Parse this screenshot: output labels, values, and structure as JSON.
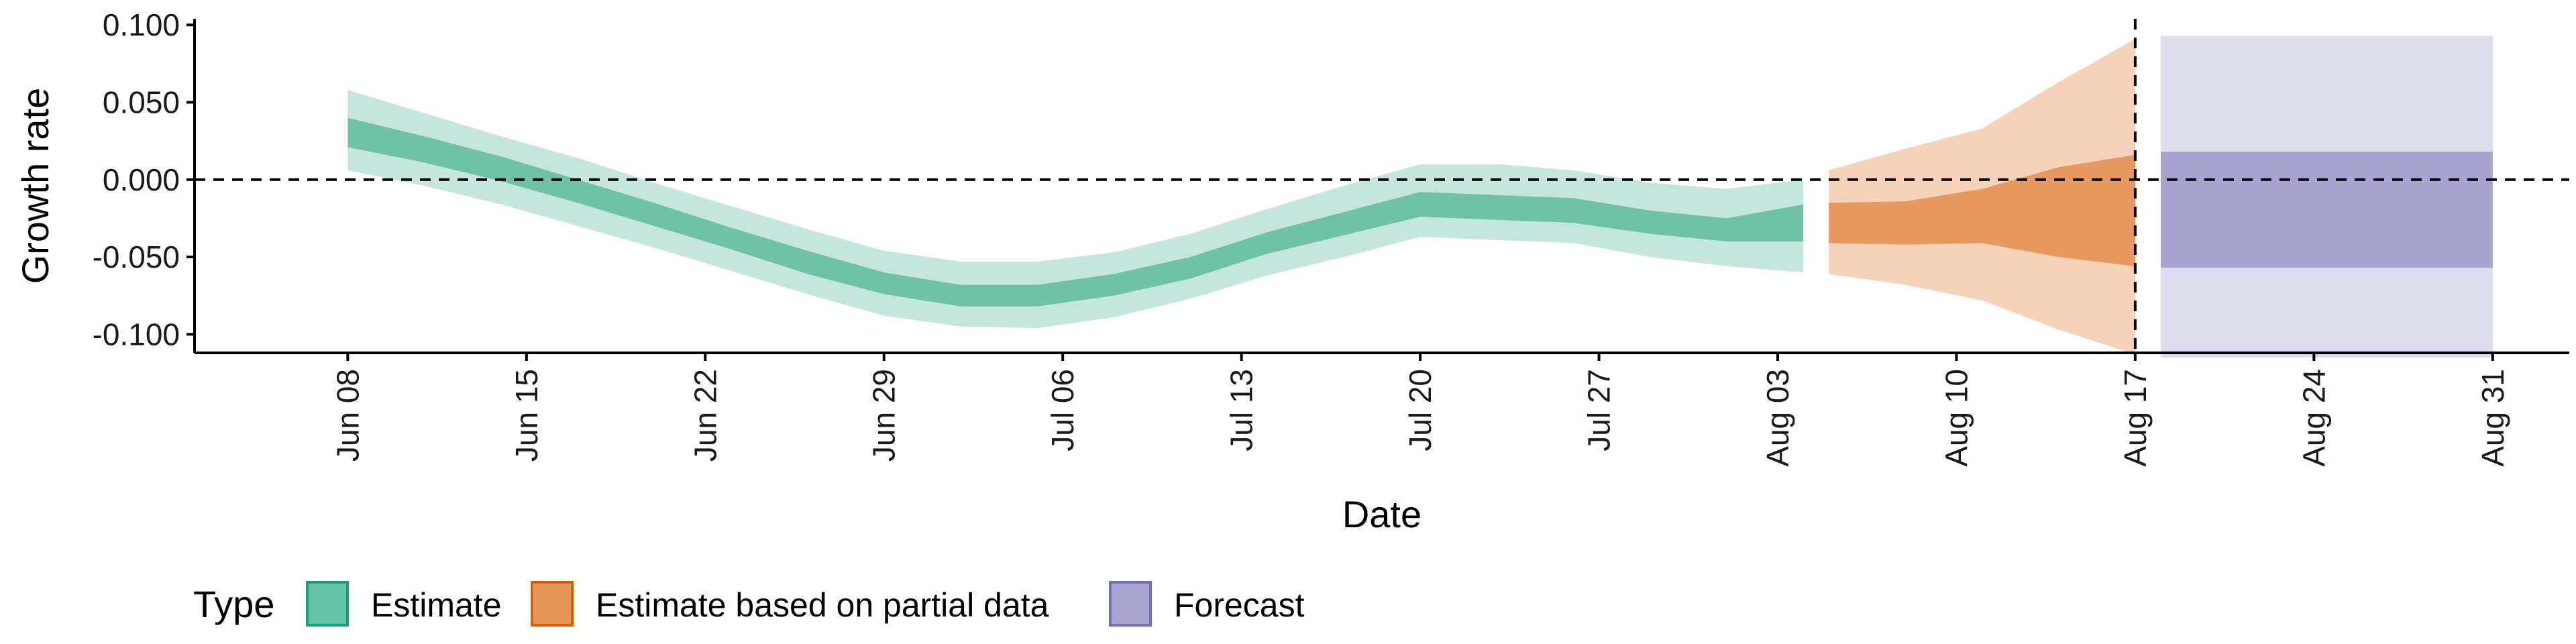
{
  "chart_data": {
    "type": "area",
    "title": "",
    "xlabel": "Date",
    "ylabel": "Growth rate",
    "ylim": [
      -0.112,
      0.104
    ],
    "xlim": [
      "2020-06-02",
      "2020-09-03"
    ],
    "x_ticks": [
      {
        "date": "2020-06-08",
        "label": "Jun 08"
      },
      {
        "date": "2020-06-15",
        "label": "Jun 15"
      },
      {
        "date": "2020-06-22",
        "label": "Jun 22"
      },
      {
        "date": "2020-06-29",
        "label": "Jun 29"
      },
      {
        "date": "2020-07-06",
        "label": "Jul 06"
      },
      {
        "date": "2020-07-13",
        "label": "Jul 13"
      },
      {
        "date": "2020-07-20",
        "label": "Jul 20"
      },
      {
        "date": "2020-07-27",
        "label": "Jul 27"
      },
      {
        "date": "2020-08-03",
        "label": "Aug 03"
      },
      {
        "date": "2020-08-10",
        "label": "Aug 10"
      },
      {
        "date": "2020-08-17",
        "label": "Aug 17"
      },
      {
        "date": "2020-08-24",
        "label": "Aug 24"
      },
      {
        "date": "2020-08-31",
        "label": "Aug 31"
      }
    ],
    "y_ticks": [
      {
        "value": 0.1,
        "label": "0.100"
      },
      {
        "value": 0.05,
        "label": "0.050"
      },
      {
        "value": 0.0,
        "label": "0.000"
      },
      {
        "value": -0.05,
        "label": "-0.050"
      },
      {
        "value": -0.1,
        "label": "-0.100"
      }
    ],
    "reference_lines": {
      "horizontal_y": 0.0,
      "vertical_x": "2020-08-17",
      "style": "dashed"
    },
    "grid": false,
    "legend": {
      "title": "Type",
      "position": "bottom-left",
      "items": [
        {
          "label": "Estimate",
          "fill": "#66c2a5",
          "border": "#1b9e77"
        },
        {
          "label": "Estimate based on partial data",
          "fill": "#e8955a",
          "border": "#d95f02"
        },
        {
          "label": "Forecast",
          "fill": "#a9a4d1",
          "border": "#7570b3"
        }
      ]
    },
    "series": [
      {
        "name": "Estimate",
        "outer_color": "#c6e6dd",
        "inner_color": "#70c2a6",
        "points": [
          {
            "date": "2020-06-08",
            "lo90": 0.006,
            "lo50": 0.021,
            "hi50": 0.04,
            "hi90": 0.058
          },
          {
            "date": "2020-06-11",
            "lo90": -0.004,
            "lo50": 0.011,
            "hi50": 0.028,
            "hi90": 0.043
          },
          {
            "date": "2020-06-14",
            "lo90": -0.016,
            "lo50": -0.001,
            "hi50": 0.015,
            "hi90": 0.028
          },
          {
            "date": "2020-06-17",
            "lo90": -0.03,
            "lo50": -0.015,
            "hi50": 0.0,
            "hi90": 0.014
          },
          {
            "date": "2020-06-20",
            "lo90": -0.044,
            "lo50": -0.03,
            "hi50": -0.015,
            "hi90": -0.002
          },
          {
            "date": "2020-06-23",
            "lo90": -0.059,
            "lo50": -0.045,
            "hi50": -0.031,
            "hi90": -0.017
          },
          {
            "date": "2020-06-26",
            "lo90": -0.074,
            "lo50": -0.061,
            "hi50": -0.046,
            "hi90": -0.032
          },
          {
            "date": "2020-06-29",
            "lo90": -0.088,
            "lo50": -0.074,
            "hi50": -0.06,
            "hi90": -0.046
          },
          {
            "date": "2020-07-02",
            "lo90": -0.095,
            "lo50": -0.082,
            "hi50": -0.068,
            "hi90": -0.053
          },
          {
            "date": "2020-07-05",
            "lo90": -0.096,
            "lo50": -0.082,
            "hi50": -0.068,
            "hi90": -0.053
          },
          {
            "date": "2020-07-08",
            "lo90": -0.089,
            "lo50": -0.075,
            "hi50": -0.061,
            "hi90": -0.047
          },
          {
            "date": "2020-07-11",
            "lo90": -0.077,
            "lo50": -0.064,
            "hi50": -0.05,
            "hi90": -0.035
          },
          {
            "date": "2020-07-14",
            "lo90": -0.062,
            "lo50": -0.048,
            "hi50": -0.034,
            "hi90": -0.019
          },
          {
            "date": "2020-07-17",
            "lo90": -0.05,
            "lo50": -0.036,
            "hi50": -0.021,
            "hi90": -0.004
          },
          {
            "date": "2020-07-20",
            "lo90": -0.037,
            "lo50": -0.024,
            "hi50": -0.008,
            "hi90": 0.01
          },
          {
            "date": "2020-07-23",
            "lo90": -0.039,
            "lo50": -0.026,
            "hi50": -0.01,
            "hi90": 0.01
          },
          {
            "date": "2020-07-26",
            "lo90": -0.041,
            "lo50": -0.028,
            "hi50": -0.012,
            "hi90": 0.006
          },
          {
            "date": "2020-07-29",
            "lo90": -0.05,
            "lo50": -0.035,
            "hi50": -0.02,
            "hi90": -0.002
          },
          {
            "date": "2020-08-01",
            "lo90": -0.056,
            "lo50": -0.04,
            "hi50": -0.025,
            "hi90": -0.006
          },
          {
            "date": "2020-08-04",
            "lo90": -0.06,
            "lo50": -0.04,
            "hi50": -0.016,
            "hi90": 0.0
          }
        ]
      },
      {
        "name": "Estimate based on partial data",
        "outer_color": "#f5d2b9",
        "inner_color": "#e79960",
        "points": [
          {
            "date": "2020-08-05",
            "lo90": -0.061,
            "lo50": -0.041,
            "hi50": -0.015,
            "hi90": 0.006
          },
          {
            "date": "2020-08-08",
            "lo90": -0.068,
            "lo50": -0.042,
            "hi50": -0.014,
            "hi90": 0.02
          },
          {
            "date": "2020-08-11",
            "lo90": -0.078,
            "lo50": -0.041,
            "hi50": -0.006,
            "hi90": 0.033
          },
          {
            "date": "2020-08-14",
            "lo90": -0.097,
            "lo50": -0.05,
            "hi50": 0.008,
            "hi90": 0.063
          },
          {
            "date": "2020-08-17",
            "lo90": -0.113,
            "lo50": -0.056,
            "hi50": 0.016,
            "hi90": 0.091
          }
        ]
      },
      {
        "name": "Forecast",
        "outer_color": "#dcdbec",
        "inner_color": "#a8a3d0",
        "range": [
          "2020-08-18",
          "2020-08-31"
        ],
        "lo90": -0.115,
        "lo50": -0.057,
        "hi50": 0.018,
        "hi90": 0.093
      }
    ]
  }
}
